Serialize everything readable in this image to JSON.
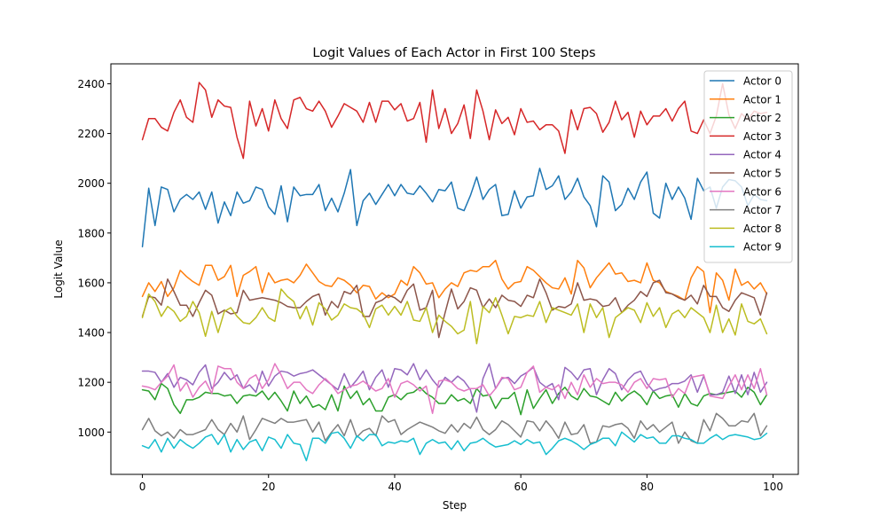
{
  "chart_data": {
    "type": "line",
    "title": "Logit Values of Each Actor in First 100 Steps",
    "xlabel": "Step",
    "ylabel": "Logit Value",
    "xlim": [
      -5,
      104
    ],
    "ylim": [
      830,
      2480
    ],
    "xticks": [
      0,
      20,
      40,
      60,
      80,
      100
    ],
    "yticks": [
      1000,
      1200,
      1400,
      1600,
      1800,
      2000,
      2200,
      2400
    ],
    "grid": false,
    "legend_position": "top-right",
    "x_start": 0,
    "series": [
      {
        "name": "Actor 0",
        "color": "#1f77b4",
        "values": [
          1745,
          1980,
          1830,
          1985,
          1975,
          1885,
          1935,
          1955,
          1935,
          1965,
          1895,
          1965,
          1840,
          1925,
          1870,
          1965,
          1920,
          1930,
          1985,
          1975,
          1905,
          1875,
          1990,
          1845,
          1985,
          1950,
          1955,
          1955,
          1995,
          1890,
          1940,
          1885,
          1960,
          2055,
          1830,
          1930,
          1960,
          1915,
          1955,
          1995,
          1950,
          1995,
          1960,
          1955,
          1990,
          1960,
          1925,
          1975,
          1970,
          2005,
          1900,
          1890,
          1950,
          2025,
          1935,
          1975,
          1995,
          1870,
          1875,
          1970,
          1900,
          1945,
          1950,
          2060,
          1975,
          1990,
          2030,
          1935,
          1965,
          2020,
          1945,
          1910,
          1825,
          2030,
          2005,
          1890,
          1915,
          1980,
          1935,
          2005,
          2045,
          1880,
          1860,
          2000,
          1935,
          1985,
          1940,
          1855,
          2020,
          1970,
          1985,
          1900,
          1985,
          2015,
          2010,
          1985,
          1910,
          1955,
          1935,
          1930
        ]
      },
      {
        "name": "Actor 1",
        "color": "#ff7f0e",
        "values": [
          1545,
          1600,
          1565,
          1605,
          1545,
          1580,
          1650,
          1625,
          1605,
          1590,
          1670,
          1670,
          1610,
          1625,
          1670,
          1545,
          1630,
          1645,
          1665,
          1560,
          1640,
          1600,
          1610,
          1615,
          1600,
          1630,
          1675,
          1640,
          1605,
          1590,
          1585,
          1620,
          1610,
          1590,
          1560,
          1590,
          1585,
          1535,
          1560,
          1540,
          1555,
          1610,
          1590,
          1665,
          1640,
          1595,
          1600,
          1540,
          1575,
          1600,
          1585,
          1640,
          1650,
          1645,
          1665,
          1665,
          1690,
          1615,
          1575,
          1600,
          1605,
          1665,
          1650,
          1625,
          1600,
          1580,
          1575,
          1620,
          1555,
          1690,
          1660,
          1580,
          1620,
          1650,
          1680,
          1635,
          1640,
          1605,
          1610,
          1600,
          1680,
          1610,
          1600,
          1565,
          1555,
          1545,
          1530,
          1620,
          1665,
          1645,
          1480,
          1640,
          1610,
          1530,
          1655,
          1590,
          1605,
          1575,
          1600,
          1555
        ]
      },
      {
        "name": "Actor 2",
        "color": "#2ca02c",
        "values": [
          1170,
          1165,
          1130,
          1195,
          1175,
          1110,
          1075,
          1130,
          1130,
          1140,
          1160,
          1155,
          1155,
          1145,
          1150,
          1115,
          1145,
          1150,
          1145,
          1165,
          1130,
          1160,
          1125,
          1085,
          1165,
          1115,
          1145,
          1100,
          1110,
          1090,
          1150,
          1085,
          1185,
          1135,
          1165,
          1110,
          1135,
          1085,
          1085,
          1140,
          1150,
          1130,
          1155,
          1160,
          1180,
          1155,
          1140,
          1115,
          1115,
          1150,
          1125,
          1135,
          1115,
          1175,
          1145,
          1150,
          1095,
          1135,
          1135,
          1160,
          1070,
          1170,
          1095,
          1135,
          1170,
          1115,
          1155,
          1180,
          1145,
          1130,
          1175,
          1145,
          1140,
          1125,
          1110,
          1160,
          1125,
          1150,
          1165,
          1145,
          1110,
          1165,
          1135,
          1145,
          1150,
          1100,
          1155,
          1115,
          1105,
          1145,
          1155,
          1150,
          1155,
          1160,
          1165,
          1140,
          1180,
          1160,
          1110,
          1150
        ]
      },
      {
        "name": "Actor 3",
        "color": "#d62728",
        "values": [
          2175,
          2260,
          2260,
          2225,
          2210,
          2285,
          2335,
          2265,
          2245,
          2405,
          2375,
          2265,
          2335,
          2310,
          2305,
          2185,
          2100,
          2330,
          2230,
          2300,
          2210,
          2335,
          2260,
          2220,
          2335,
          2345,
          2300,
          2290,
          2330,
          2290,
          2225,
          2270,
          2320,
          2305,
          2290,
          2245,
          2325,
          2245,
          2330,
          2330,
          2295,
          2320,
          2250,
          2260,
          2325,
          2165,
          2375,
          2220,
          2300,
          2200,
          2240,
          2315,
          2180,
          2375,
          2290,
          2175,
          2295,
          2240,
          2265,
          2195,
          2300,
          2245,
          2250,
          2215,
          2235,
          2235,
          2210,
          2120,
          2295,
          2215,
          2300,
          2305,
          2280,
          2205,
          2245,
          2330,
          2255,
          2285,
          2185,
          2290,
          2235,
          2270,
          2270,
          2300,
          2250,
          2300,
          2330,
          2210,
          2200,
          2255,
          2200,
          2270,
          2400,
          2275,
          2220,
          2280,
          2255,
          2290,
          2280,
          2285
        ]
      },
      {
        "name": "Actor 4",
        "color": "#9467bd",
        "values": [
          1245,
          1245,
          1240,
          1200,
          1235,
          1180,
          1220,
          1210,
          1190,
          1240,
          1270,
          1175,
          1200,
          1240,
          1210,
          1230,
          1175,
          1190,
          1160,
          1245,
          1185,
          1225,
          1245,
          1240,
          1225,
          1235,
          1240,
          1250,
          1230,
          1210,
          1190,
          1170,
          1235,
          1180,
          1210,
          1245,
          1170,
          1220,
          1250,
          1180,
          1255,
          1250,
          1230,
          1275,
          1210,
          1250,
          1210,
          1180,
          1220,
          1200,
          1225,
          1205,
          1170,
          1080,
          1215,
          1275,
          1175,
          1215,
          1220,
          1195,
          1225,
          1240,
          1260,
          1200,
          1180,
          1195,
          1130,
          1260,
          1240,
          1210,
          1250,
          1255,
          1150,
          1210,
          1255,
          1235,
          1170,
          1210,
          1235,
          1245,
          1195,
          1165,
          1175,
          1180,
          1195,
          1195,
          1205,
          1230,
          1160,
          1225,
          1150,
          1150,
          1160,
          1225,
          1155,
          1230,
          1150,
          1240,
          1160,
          1200
        ]
      },
      {
        "name": "Actor 5",
        "color": "#8c564b",
        "values": [
          1465,
          1545,
          1540,
          1510,
          1615,
          1565,
          1510,
          1510,
          1465,
          1520,
          1570,
          1550,
          1475,
          1490,
          1475,
          1480,
          1570,
          1530,
          1535,
          1540,
          1535,
          1530,
          1520,
          1505,
          1500,
          1500,
          1525,
          1545,
          1555,
          1470,
          1525,
          1500,
          1565,
          1555,
          1590,
          1465,
          1465,
          1520,
          1530,
          1550,
          1540,
          1520,
          1570,
          1595,
          1490,
          1500,
          1570,
          1380,
          1480,
          1575,
          1495,
          1525,
          1580,
          1570,
          1500,
          1535,
          1500,
          1550,
          1530,
          1525,
          1505,
          1550,
          1540,
          1615,
          1560,
          1490,
          1505,
          1500,
          1515,
          1600,
          1530,
          1535,
          1530,
          1505,
          1510,
          1540,
          1480,
          1510,
          1530,
          1565,
          1545,
          1600,
          1610,
          1560,
          1555,
          1540,
          1530,
          1550,
          1515,
          1590,
          1545,
          1545,
          1500,
          1485,
          1530,
          1560,
          1550,
          1540,
          1470,
          1560
        ]
      },
      {
        "name": "Actor 6",
        "color": "#e377c2",
        "values": [
          1185,
          1180,
          1170,
          1200,
          1225,
          1270,
          1165,
          1200,
          1140,
          1180,
          1205,
          1155,
          1265,
          1255,
          1255,
          1200,
          1175,
          1215,
          1230,
          1175,
          1210,
          1275,
          1230,
          1175,
          1200,
          1200,
          1170,
          1155,
          1190,
          1215,
          1190,
          1155,
          1170,
          1185,
          1190,
          1205,
          1185,
          1165,
          1175,
          1215,
          1140,
          1195,
          1205,
          1190,
          1165,
          1185,
          1075,
          1205,
          1210,
          1200,
          1175,
          1165,
          1175,
          1175,
          1190,
          1145,
          1175,
          1220,
          1215,
          1170,
          1180,
          1240,
          1265,
          1160,
          1180,
          1170,
          1190,
          1135,
          1200,
          1150,
          1230,
          1180,
          1215,
          1195,
          1200,
          1200,
          1190,
          1160,
          1200,
          1215,
          1175,
          1215,
          1210,
          1215,
          1140,
          1175,
          1155,
          1220,
          1225,
          1230,
          1145,
          1140,
          1135,
          1185,
          1230,
          1170,
          1230,
          1175,
          1255,
          1150
        ]
      },
      {
        "name": "Actor 7",
        "color": "#7f7f7f",
        "values": [
          1010,
          1055,
          1005,
          985,
          1000,
          975,
          1010,
          990,
          990,
          1000,
          1010,
          1050,
          1010,
          990,
          1035,
          1000,
          1065,
          970,
          1010,
          1055,
          1045,
          1035,
          1055,
          1040,
          1040,
          1045,
          1050,
          1000,
          1040,
          965,
          1000,
          1030,
          985,
          1050,
          980,
          1005,
          1015,
          985,
          1065,
          1040,
          1050,
          990,
          1010,
          1025,
          1040,
          1030,
          1020,
          1005,
          995,
          1030,
          1000,
          1035,
          1015,
          1060,
          1010,
          990,
          1010,
          1045,
          1030,
          1005,
          980,
          1045,
          1040,
          1005,
          1045,
          1015,
          975,
          1040,
          990,
          995,
          1030,
          955,
          960,
          1025,
          1020,
          1030,
          1035,
          1015,
          975,
          1045,
          1010,
          1030,
          1000,
          1020,
          1040,
          955,
          1000,
          965,
          955,
          1050,
          1005,
          1075,
          1055,
          1025,
          1025,
          1045,
          1040,
          1075,
          985,
          1025
        ]
      },
      {
        "name": "Actor 8",
        "color": "#bcbd22",
        "values": [
          1460,
          1555,
          1525,
          1465,
          1505,
          1485,
          1445,
          1465,
          1525,
          1480,
          1385,
          1485,
          1400,
          1485,
          1500,
          1465,
          1440,
          1435,
          1460,
          1500,
          1460,
          1445,
          1575,
          1545,
          1525,
          1455,
          1505,
          1430,
          1520,
          1495,
          1450,
          1470,
          1515,
          1500,
          1495,
          1475,
          1420,
          1495,
          1510,
          1470,
          1505,
          1470,
          1525,
          1450,
          1445,
          1500,
          1400,
          1470,
          1445,
          1425,
          1395,
          1410,
          1525,
          1355,
          1505,
          1480,
          1540,
          1470,
          1395,
          1465,
          1460,
          1470,
          1465,
          1525,
          1440,
          1500,
          1490,
          1480,
          1470,
          1515,
          1400,
          1515,
          1460,
          1500,
          1380,
          1460,
          1480,
          1500,
          1490,
          1440,
          1520,
          1465,
          1500,
          1420,
          1475,
          1490,
          1460,
          1500,
          1480,
          1460,
          1400,
          1510,
          1400,
          1455,
          1390,
          1515,
          1445,
          1435,
          1455,
          1395
        ]
      },
      {
        "name": "Actor 9",
        "color": "#17becf",
        "values": [
          945,
          935,
          970,
          920,
          975,
          935,
          970,
          950,
          935,
          955,
          980,
          990,
          950,
          990,
          920,
          970,
          930,
          960,
          970,
          925,
          980,
          970,
          935,
          990,
          955,
          950,
          885,
          975,
          975,
          955,
          995,
          1000,
          975,
          935,
          985,
          965,
          990,
          990,
          945,
          960,
          955,
          965,
          960,
          975,
          910,
          955,
          970,
          955,
          960,
          930,
          965,
          925,
          955,
          960,
          975,
          955,
          940,
          945,
          950,
          965,
          950,
          970,
          955,
          960,
          910,
          935,
          965,
          975,
          965,
          950,
          930,
          950,
          960,
          975,
          975,
          945,
          1000,
          980,
          960,
          990,
          975,
          980,
          955,
          955,
          985,
          985,
          975,
          970,
          955,
          955,
          975,
          990,
          970,
          985,
          990,
          985,
          980,
          970,
          975,
          995
        ]
      }
    ]
  }
}
